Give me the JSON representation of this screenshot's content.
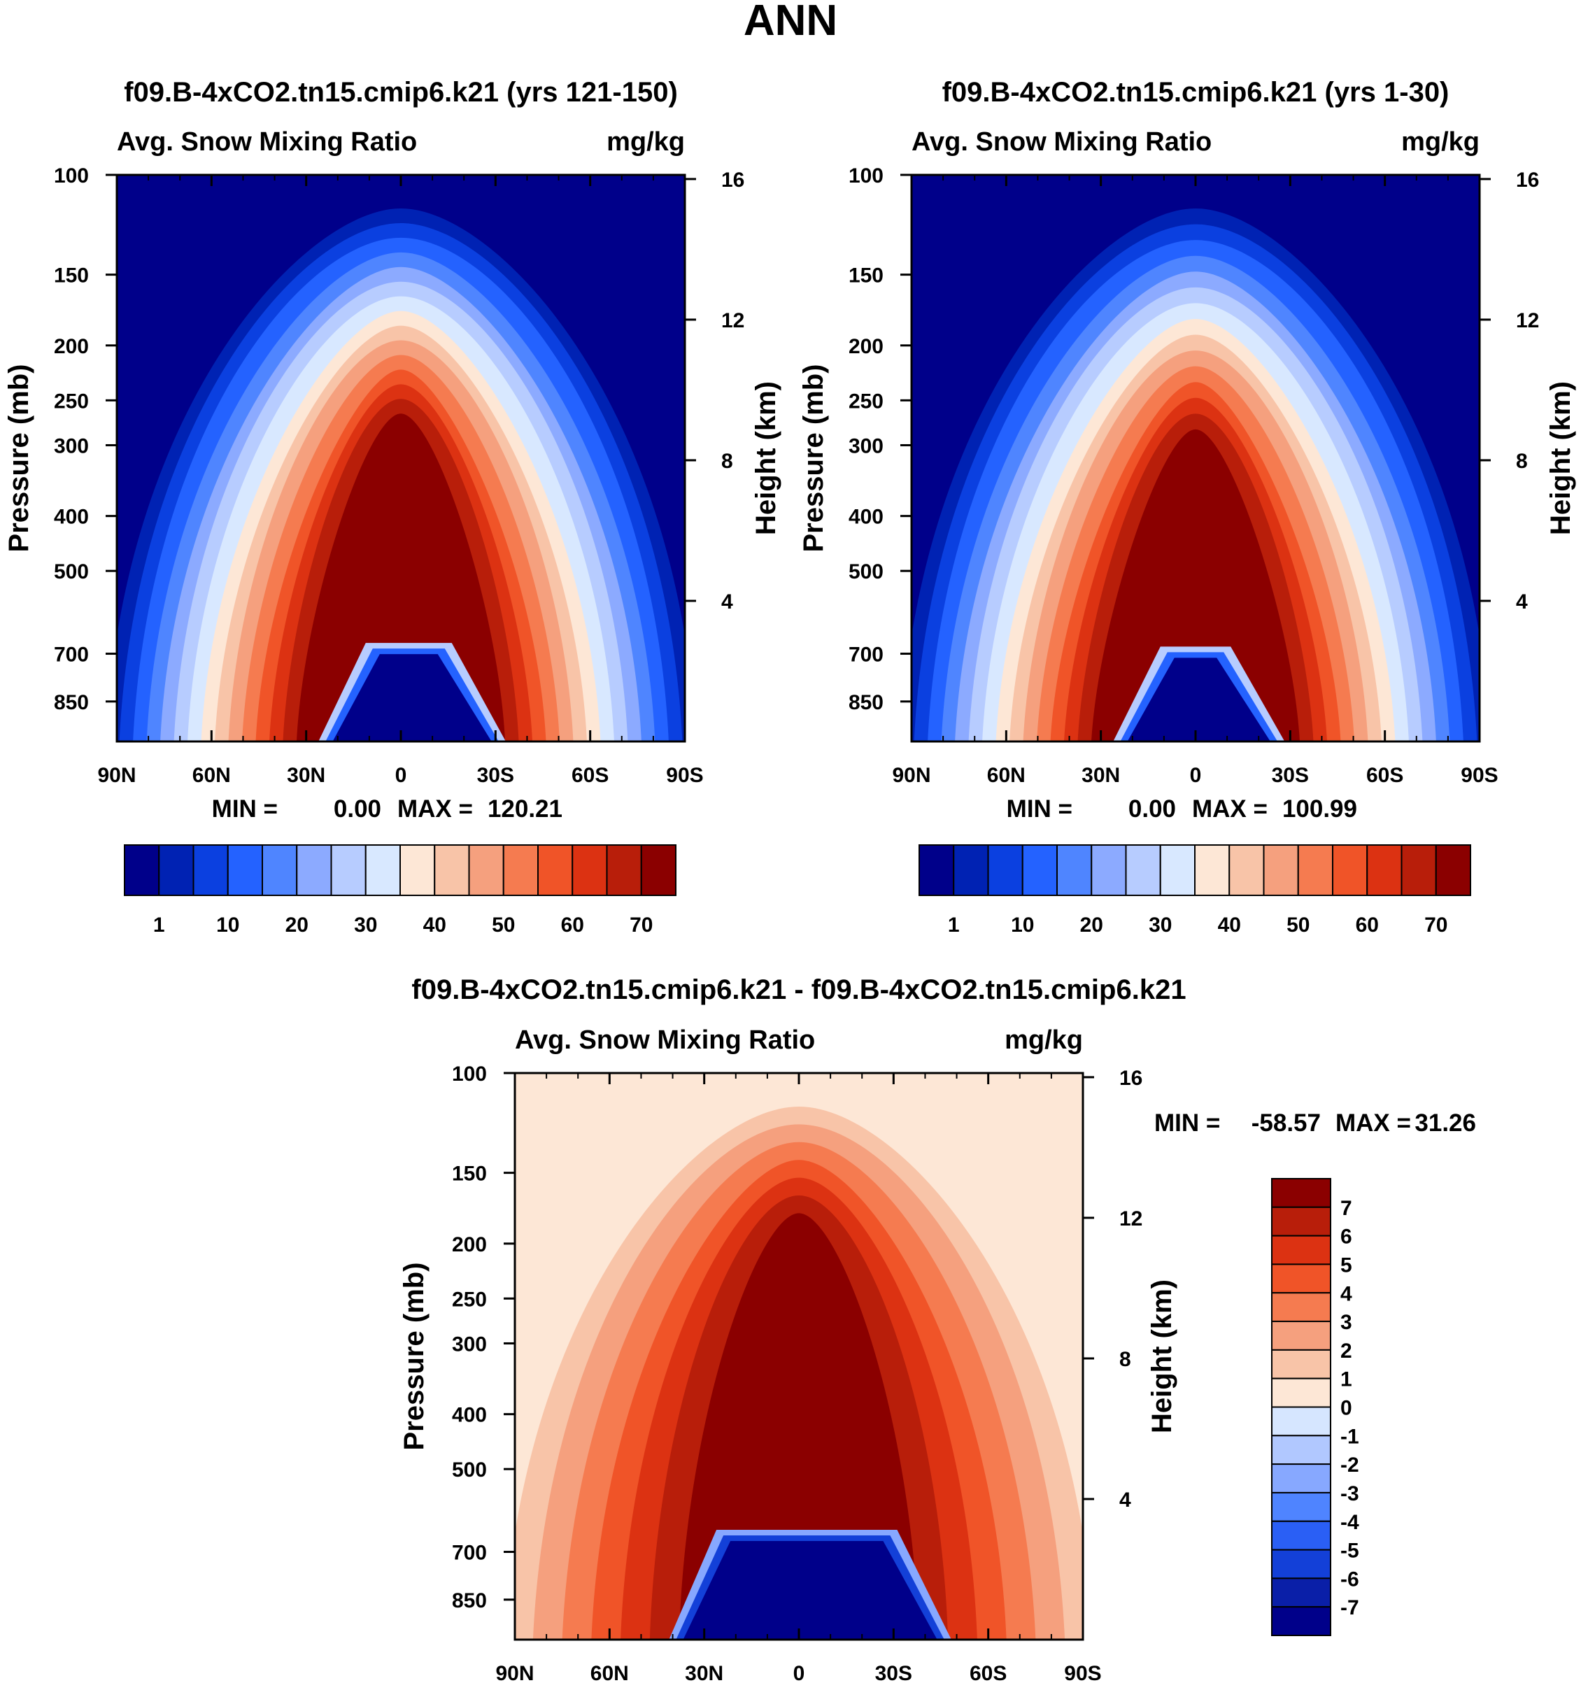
{
  "figure_title": "ANN",
  "colors": {
    "abs_levels": [
      "#00008a",
      "#0022b3",
      "#0b40e0",
      "#2462ff",
      "#4f85ff",
      "#8caaff",
      "#b7ccff",
      "#d8e8ff",
      "#fde7d6",
      "#f8c4a8",
      "#f5a07e",
      "#f57b50",
      "#f05428",
      "#dc3212",
      "#b81e0a",
      "#8b0000"
    ],
    "diff_levels": [
      "#00008a",
      "#0a1fa8",
      "#1340d8",
      "#2a5ff5",
      "#4f84ff",
      "#87a8ff",
      "#b1c8ff",
      "#d6e6ff",
      "#fde7d6",
      "#f8c4a8",
      "#f5a07e",
      "#f57b50",
      "#f05428",
      "#dc3212",
      "#b81e0a",
      "#8b0000"
    ]
  },
  "chart_data": [
    {
      "type": "heatmap",
      "title": "f09.B-4xCO2.tn15.cmip6.k21 (yrs 121-150)",
      "subtitle_left": "Avg. Snow Mixing Ratio",
      "subtitle_right": "mg/kg",
      "ylabel": "Pressure (mb)",
      "ylabel_right": "Height (km)",
      "xticks": [
        "90N",
        "60N",
        "30N",
        "0",
        "30S",
        "60S",
        "90S"
      ],
      "yticks": [
        "100",
        "150",
        "200",
        "250",
        "300",
        "400",
        "500",
        "700",
        "850"
      ],
      "yticks_right": [
        "16",
        "12",
        "8",
        "4"
      ],
      "ylim": [
        1000,
        100
      ],
      "xlim": [
        "90N",
        "90S"
      ],
      "stats": {
        "min_label": "MIN =",
        "min": "0.00",
        "max_label": "MAX =",
        "max": "120.21"
      },
      "levels": [
        1,
        5,
        10,
        15,
        20,
        25,
        30,
        35,
        40,
        45,
        50,
        55,
        60,
        65,
        70
      ],
      "colorbar_labels": [
        "1",
        "10",
        "20",
        "30",
        "40",
        "50",
        "60",
        "70"
      ],
      "peak_pressure_top_mb": 280,
      "low_cap": {
        "from_lat": 20,
        "to_lat": -25,
        "top_mb": 670
      }
    },
    {
      "type": "heatmap",
      "title": "f09.B-4xCO2.tn15.cmip6.k21 (yrs 1-30)",
      "subtitle_left": "Avg. Snow Mixing Ratio",
      "subtitle_right": "mg/kg",
      "ylabel": "Pressure (mb)",
      "ylabel_right": "Height (km)",
      "xticks": [
        "90N",
        "60N",
        "30N",
        "0",
        "30S",
        "60S",
        "90S"
      ],
      "yticks": [
        "100",
        "150",
        "200",
        "250",
        "300",
        "400",
        "500",
        "700",
        "850"
      ],
      "yticks_right": [
        "16",
        "12",
        "8",
        "4"
      ],
      "ylim": [
        1000,
        100
      ],
      "xlim": [
        "90N",
        "90S"
      ],
      "stats": {
        "min_label": "MIN =",
        "min": "0.00",
        "max_label": "MAX =",
        "max": "100.99"
      },
      "levels": [
        1,
        5,
        10,
        15,
        20,
        25,
        30,
        35,
        40,
        45,
        50,
        55,
        60,
        65,
        70
      ],
      "colorbar_labels": [
        "1",
        "10",
        "20",
        "30",
        "40",
        "50",
        "60",
        "70"
      ],
      "peak_pressure_top_mb": 300,
      "low_cap": {
        "from_lat": 20,
        "to_lat": -20,
        "top_mb": 680
      }
    },
    {
      "type": "heatmap",
      "title": "f09.B-4xCO2.tn15.cmip6.k21 - f09.B-4xCO2.tn15.cmip6.k21",
      "subtitle_left": "Avg. Snow Mixing Ratio",
      "subtitle_right": "mg/kg",
      "ylabel": "Pressure (mb)",
      "ylabel_right": "Height (km)",
      "xticks": [
        "90N",
        "60N",
        "30N",
        "0",
        "30S",
        "60S",
        "90S"
      ],
      "yticks": [
        "100",
        "150",
        "200",
        "250",
        "300",
        "400",
        "500",
        "700",
        "850"
      ],
      "yticks_right": [
        "16",
        "12",
        "8",
        "4"
      ],
      "ylim": [
        1000,
        100
      ],
      "xlim": [
        "90N",
        "90S"
      ],
      "stats": {
        "min_label": "MIN =",
        "min": "-58.57",
        "max_label": "MAX =",
        "max": "31.26"
      },
      "levels": [
        -7,
        -6,
        -5,
        -4,
        -3,
        -2,
        -1,
        0,
        1,
        2,
        3,
        4,
        5,
        6,
        7
      ],
      "colorbar_labels": [
        "7",
        "6",
        "5",
        "4",
        "3",
        "2",
        "1",
        "0",
        "-1",
        "-2",
        "-3",
        "-4",
        "-5",
        "-6",
        "-7"
      ],
      "peak_pressure_top_mb": 190,
      "low_cap": {
        "from_lat": 35,
        "to_lat": -40,
        "top_mb": 640
      }
    }
  ]
}
